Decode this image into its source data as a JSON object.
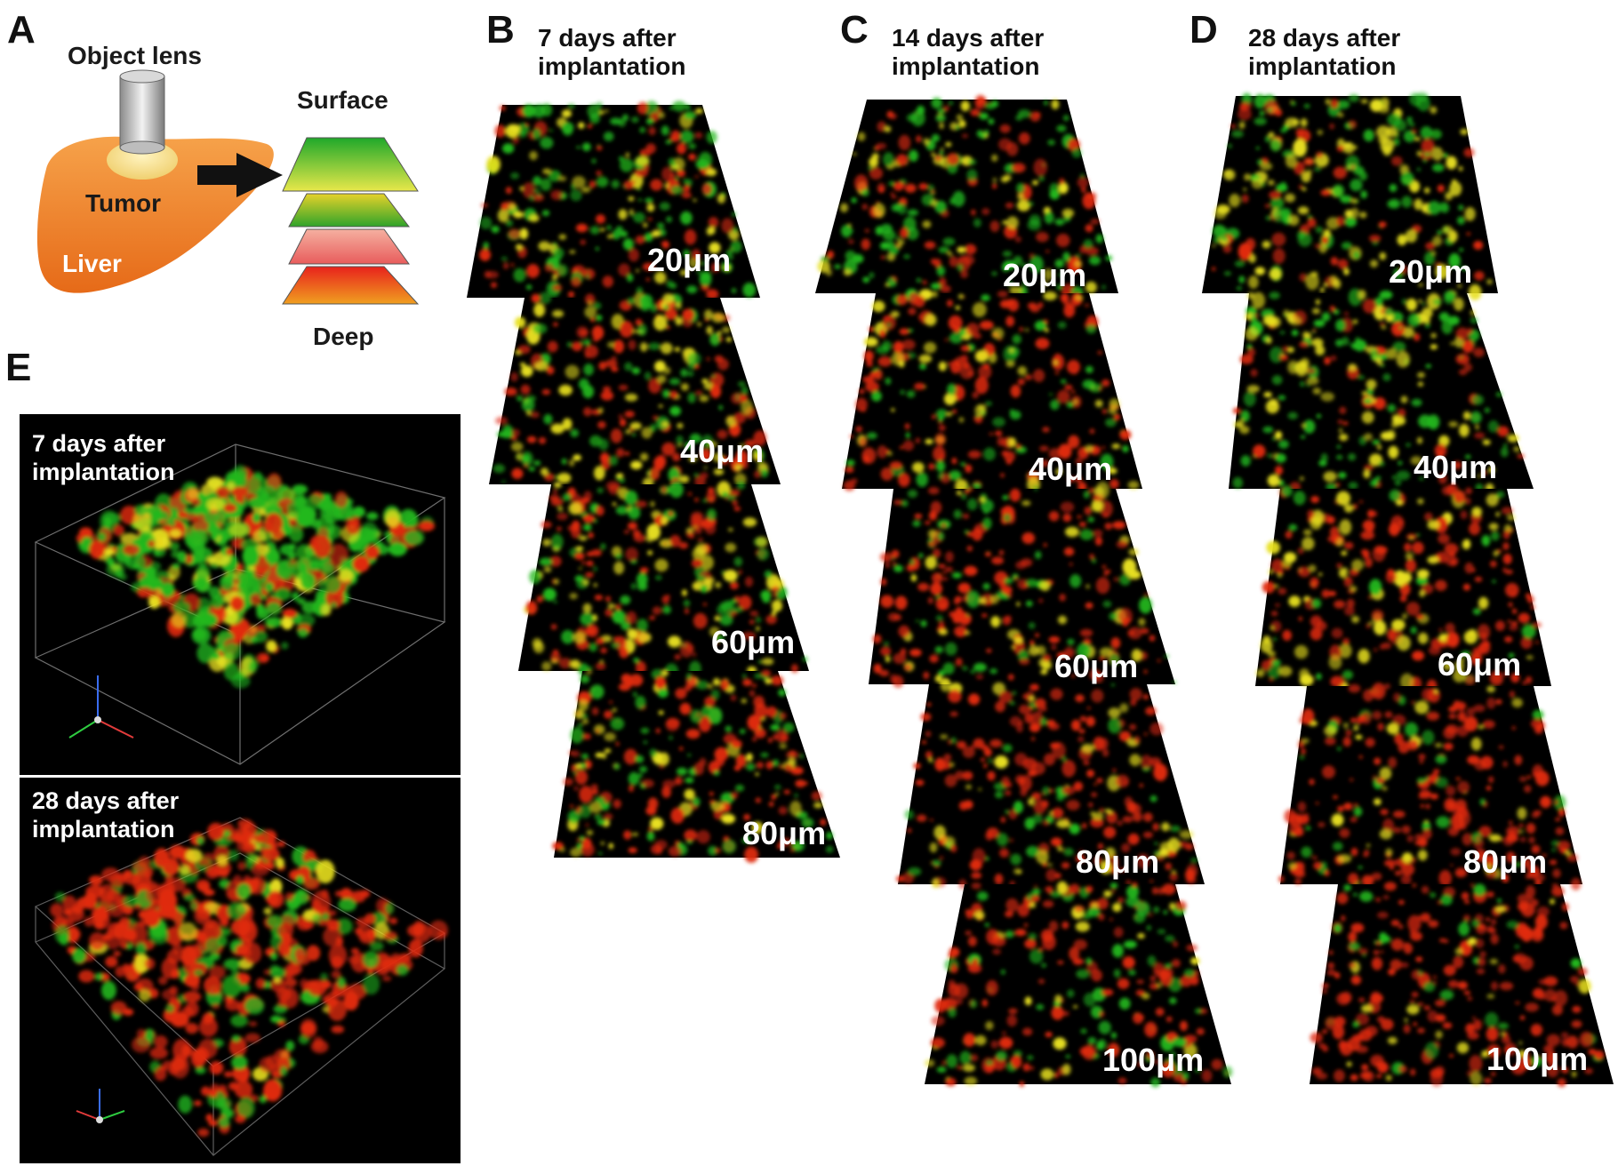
{
  "figure": {
    "panels": {
      "a": {
        "letter": "A",
        "object_lens": "Object lens",
        "tumor": "Tumor",
        "liver": "Liver",
        "surface": "Surface",
        "deep": "Deep"
      },
      "b": {
        "letter": "B",
        "title_line1": "7 days after",
        "title_line2": "implantation",
        "depths": [
          "20μm",
          "40μm",
          "60μm",
          "80μm"
        ]
      },
      "c": {
        "letter": "C",
        "title_line1": "14 days after",
        "title_line2": "implantation",
        "depths": [
          "20μm",
          "40μm",
          "60μm",
          "80μm",
          "100μm"
        ]
      },
      "d": {
        "letter": "D",
        "title_line1": "28 days after",
        "title_line2": "implantation",
        "depths": [
          "20μm",
          "40μm",
          "60μm",
          "80μm",
          "100μm"
        ]
      },
      "e": {
        "letter": "E",
        "top_line1": "7 days after",
        "top_line2": "implantation",
        "bottom_line1": "28 days after",
        "bottom_line2": "implantation"
      }
    },
    "colors": {
      "fluor_green": "#22b81e",
      "fluor_red": "#e02a10",
      "fluor_yellow": "#e8e020",
      "liver_orange": "#f08a30",
      "background": "#000000"
    }
  }
}
